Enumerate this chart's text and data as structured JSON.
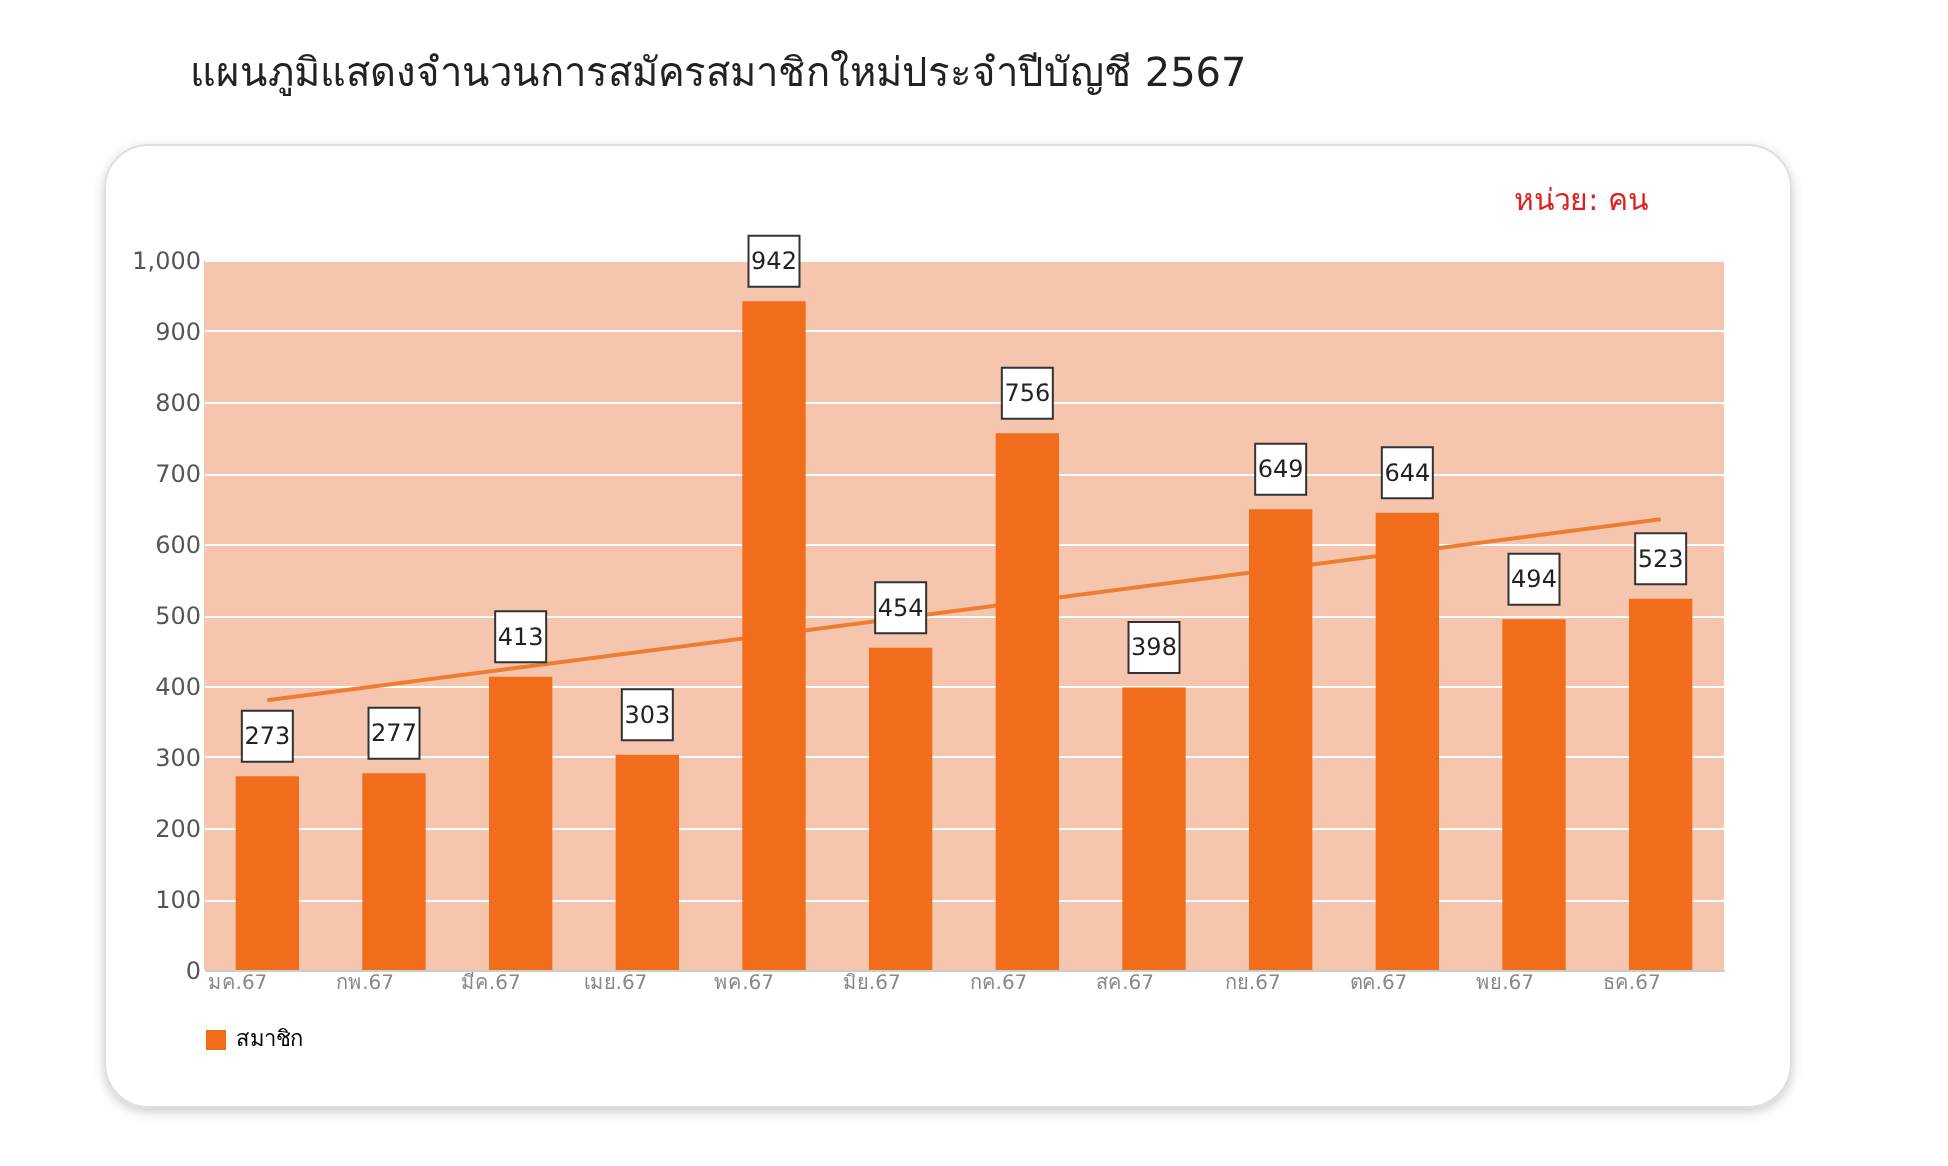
{
  "chart_data": {
    "type": "bar",
    "title": "แผนภูมิแสดงจำนวนการสมัครสมาชิกใหม่ประจำปีบัญชี 2567",
    "annotations": [
      "หน่วย: คน"
    ],
    "categories": [
      "มค.67",
      "กพ.67",
      "มีค.67",
      "เมย.67",
      "พค.67",
      "มิย.67",
      "กค.67",
      "สค.67",
      "กย.67",
      "ตค.67",
      "พย.67",
      "ธค.67"
    ],
    "series": [
      {
        "name": "สมาชิก",
        "color": "#f26d1b",
        "values": [
          273,
          277,
          413,
          303,
          942,
          454,
          756,
          398,
          649,
          644,
          494,
          523
        ],
        "value_labels": [
          "273",
          "277",
          "413",
          "303",
          "942",
          "454",
          "756",
          "398",
          "649",
          "644",
          "494",
          "523"
        ]
      },
      {
        "type": "line",
        "color": "#ed7d31",
        "x": [
          "มค.67",
          "ธค.67"
        ],
        "values": [
          380,
          635
        ]
      }
    ],
    "ylim": [
      0,
      1000
    ],
    "yticks": [
      0,
      100,
      200,
      300,
      400,
      500,
      600,
      700,
      800,
      900,
      {
        "value": 1000,
        "label": "1,000"
      }
    ],
    "grid": "y",
    "legend": "bottom left"
  }
}
